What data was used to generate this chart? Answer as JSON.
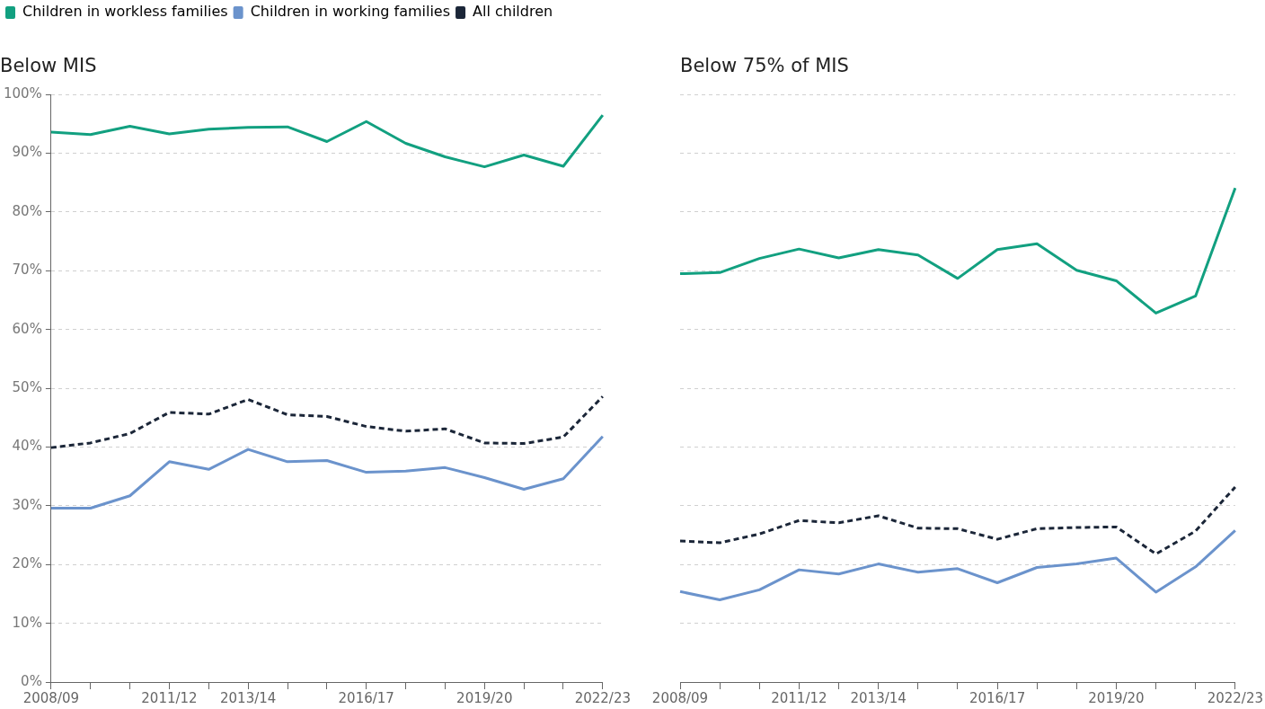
{
  "chart_data": [
    {
      "type": "line",
      "title": "Below MIS",
      "legend": "top left",
      "grid": "y",
      "marker": "none",
      "categories": [
        "2008/09",
        null,
        null,
        "2011/12",
        null,
        "2013/14",
        null,
        null,
        "2016/17",
        null,
        null,
        "2019/20",
        null,
        null,
        "2022/23"
      ],
      "ylim": [
        0,
        100
      ],
      "yticks": [
        {
          "value": 0,
          "label": "0%"
        },
        {
          "value": 10,
          "label": "10%"
        },
        {
          "value": 20,
          "label": "20%"
        },
        {
          "value": 30,
          "label": "30%"
        },
        {
          "value": 40,
          "label": "40%"
        },
        {
          "value": 50,
          "label": "50%"
        },
        {
          "value": 60,
          "label": "60%"
        },
        {
          "value": 70,
          "label": "70%"
        },
        {
          "value": 80,
          "label": "80%"
        },
        {
          "value": 90,
          "label": "90%"
        },
        {
          "value": 100,
          "label": "100%"
        }
      ],
      "series": [
        {
          "name": "Children in workless families",
          "color": "#12a080",
          "line_style": "solid",
          "values": [
            93.6,
            93.2,
            94.6,
            93.3,
            94.1,
            94.4,
            94.5,
            92.0,
            95.4,
            91.7,
            89.4,
            87.7,
            89.7,
            87.8,
            96.5
          ]
        },
        {
          "name": "Children in working families",
          "color": "#6b93cc",
          "line_style": "solid",
          "values": [
            29.6,
            29.6,
            31.7,
            37.5,
            36.2,
            39.6,
            37.5,
            37.7,
            35.7,
            35.9,
            36.5,
            34.8,
            32.8,
            34.6,
            41.8
          ]
        },
        {
          "name": "All children",
          "color": "#1b2638",
          "line_style": "dashed",
          "values": [
            39.9,
            40.7,
            42.3,
            45.9,
            45.6,
            48.1,
            45.5,
            45.2,
            43.5,
            42.7,
            43.1,
            40.7,
            40.6,
            41.7,
            48.6
          ]
        }
      ]
    },
    {
      "type": "line",
      "title": "Below 75% of MIS",
      "grid": "y",
      "marker": "none",
      "tick_labels": "x",
      "categories": [
        "2008/09",
        null,
        null,
        "2011/12",
        null,
        "2013/14",
        null,
        null,
        "2016/17",
        null,
        null,
        "2019/20",
        null,
        null,
        "2022/23"
      ],
      "ylim": [
        0,
        100
      ],
      "yticks": [
        {
          "value": 0,
          "label": null
        },
        {
          "value": 10,
          "label": null
        },
        {
          "value": 20,
          "label": null
        },
        {
          "value": 30,
          "label": null
        },
        {
          "value": 40,
          "label": null
        },
        {
          "value": 50,
          "label": null
        },
        {
          "value": 60,
          "label": null
        },
        {
          "value": 70,
          "label": null
        },
        {
          "value": 80,
          "label": null
        },
        {
          "value": 90,
          "label": null
        },
        {
          "value": 100,
          "label": null
        }
      ],
      "series": [
        {
          "color": "#12a080",
          "line_style": "solid",
          "values": [
            69.5,
            69.7,
            72.1,
            73.7,
            72.2,
            73.6,
            72.7,
            68.7,
            73.6,
            74.6,
            70.1,
            68.3,
            62.8,
            65.7,
            84.1
          ]
        },
        {
          "color": "#6b93cc",
          "line_style": "solid",
          "values": [
            15.4,
            14.0,
            15.7,
            19.1,
            18.4,
            20.1,
            18.7,
            19.3,
            16.9,
            19.5,
            20.1,
            21.1,
            15.3,
            19.6,
            25.8
          ]
        },
        {
          "color": "#1b2638",
          "line_style": "dashed",
          "values": [
            24.0,
            23.7,
            25.2,
            27.5,
            27.1,
            28.3,
            26.2,
            26.1,
            24.3,
            26.1,
            26.3,
            26.4,
            21.8,
            25.7,
            33.2
          ]
        }
      ]
    }
  ]
}
